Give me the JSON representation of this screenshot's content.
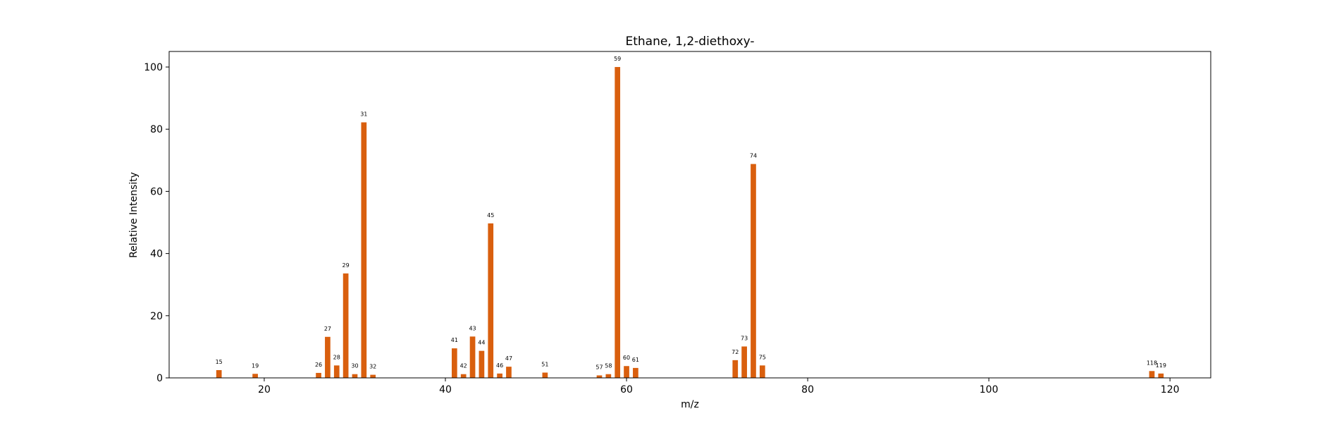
{
  "chart_data": {
    "type": "bar",
    "title": "Ethane, 1,2-diethoxy-",
    "xlabel": "m/z",
    "ylabel": "Relative Intensity",
    "xlim": [
      9.5,
      124.5
    ],
    "ylim": [
      0,
      105
    ],
    "xticks": [
      20,
      40,
      60,
      80,
      100,
      120
    ],
    "yticks": [
      0,
      20,
      40,
      60,
      80,
      100
    ],
    "bar_color": "#d95f0e",
    "grid": false,
    "legend": "none",
    "x": [
      15,
      19,
      26,
      27,
      28,
      29,
      30,
      31,
      32,
      41,
      42,
      43,
      44,
      45,
      46,
      47,
      51,
      57,
      58,
      59,
      60,
      61,
      72,
      73,
      74,
      75,
      118,
      119
    ],
    "values": [
      2.5,
      1.3,
      1.6,
      13.2,
      4.0,
      33.6,
      1.2,
      82.2,
      1.0,
      9.5,
      1.2,
      13.3,
      8.7,
      49.7,
      1.4,
      3.6,
      1.7,
      0.8,
      1.2,
      100.0,
      3.8,
      3.2,
      5.7,
      10.1,
      68.8,
      4.0,
      2.2,
      1.4
    ],
    "labels": [
      "15",
      "19",
      "26",
      "27",
      "28",
      "29",
      "30",
      "31",
      "32",
      "41",
      "42",
      "43",
      "44",
      "45",
      "46",
      "47",
      "51",
      "57",
      "58",
      "59",
      "60",
      "61",
      "72",
      "73",
      "74",
      "75",
      "118",
      "119"
    ]
  }
}
